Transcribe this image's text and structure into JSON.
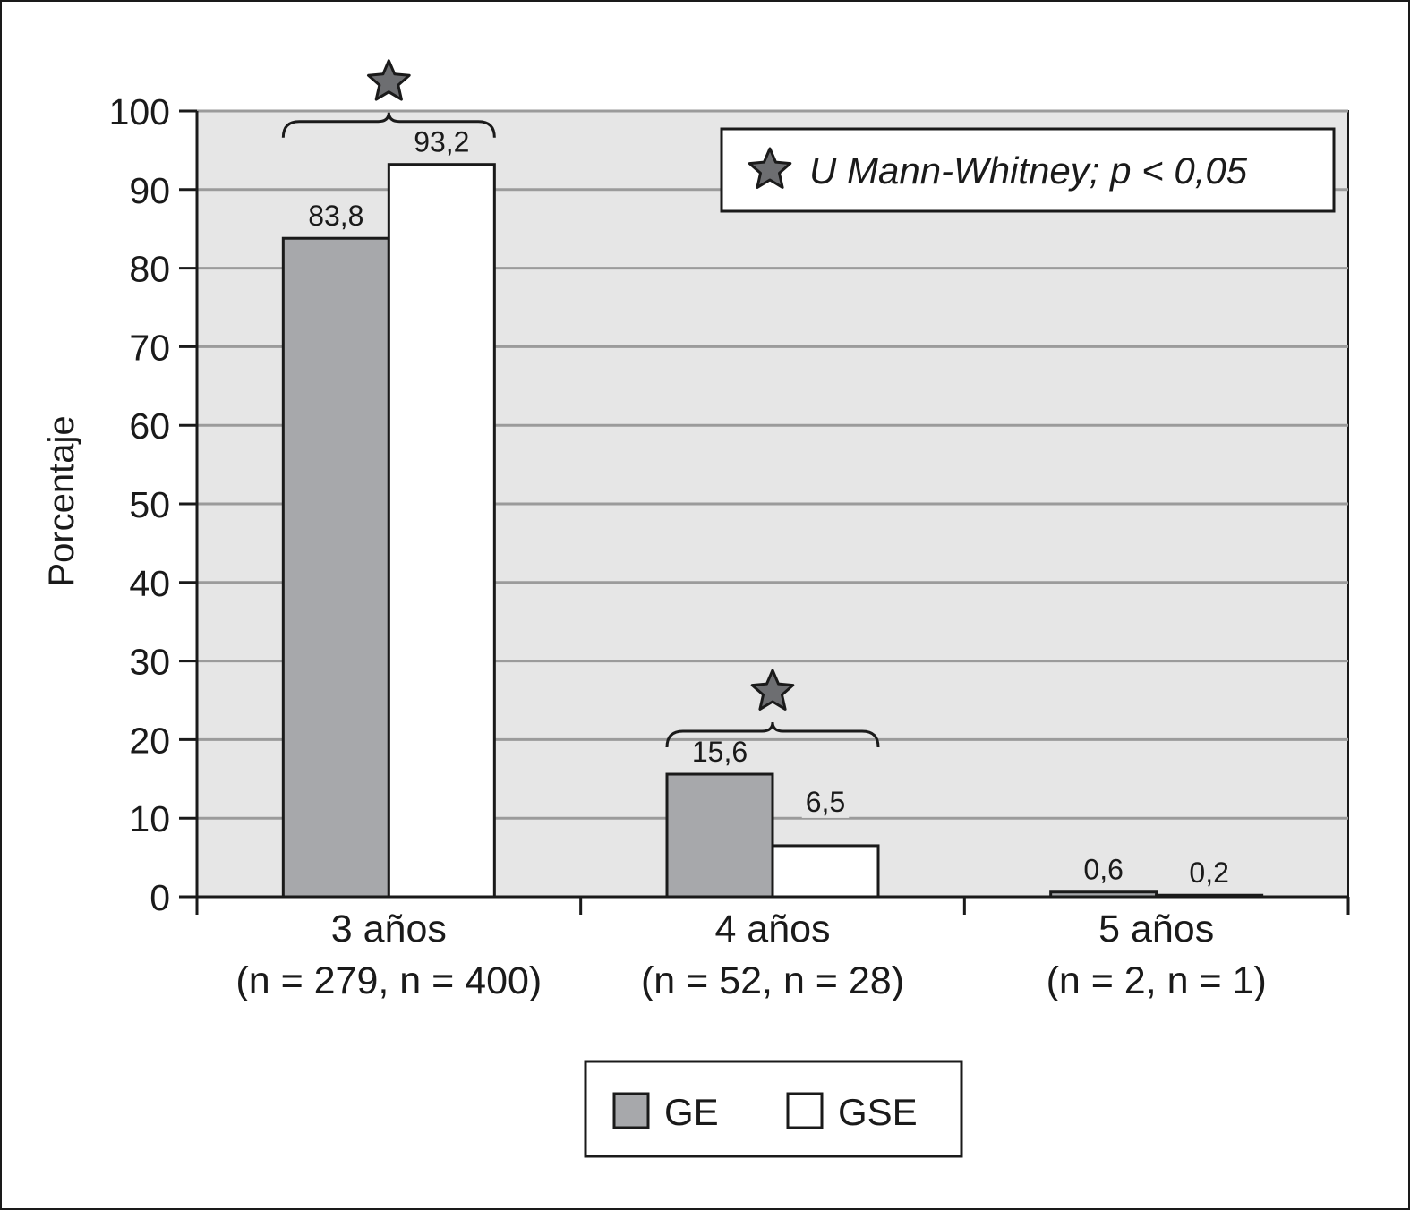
{
  "chart_data": {
    "type": "bar",
    "ylabel": "Porcentaje",
    "ylim": [
      0,
      100
    ],
    "yticks": [
      0,
      10,
      20,
      30,
      40,
      50,
      60,
      70,
      80,
      90,
      100
    ],
    "grid": true,
    "categories": [
      {
        "label": "3 años",
        "n_label": "(n = 279, n = 400)"
      },
      {
        "label": "4 años",
        "n_label": "(n = 52, n = 28)"
      },
      {
        "label": "5 años",
        "n_label": "(n = 2, n = 1)"
      }
    ],
    "series": [
      {
        "name": "GE",
        "color": "#a7a8ab",
        "values": [
          83.8,
          15.6,
          0.6
        ],
        "labels": [
          "83,8",
          "15,6",
          "0,6"
        ]
      },
      {
        "name": "GSE",
        "color": "#ffffff",
        "values": [
          93.2,
          6.5,
          0.2
        ],
        "labels": [
          "93,2",
          "6,5",
          "0,2"
        ]
      }
    ],
    "significant_categories": [
      0,
      1
    ],
    "annotation": "U Mann-Whitney; p < 0,05",
    "legend_position": "bottom",
    "colors": {
      "plot_background": "#e6e6e6",
      "gridline": "#9b9b9b",
      "star": "#6d6e71"
    }
  }
}
